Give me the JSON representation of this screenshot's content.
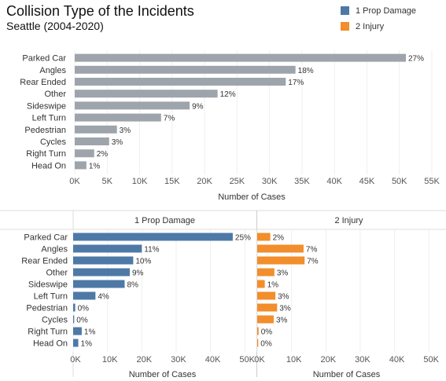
{
  "header": {
    "title": "Collision Type of the Incidents",
    "subtitle": "Seattle (2004-2020)"
  },
  "legend": {
    "items": [
      {
        "label": "1 Prop Damage",
        "color": "#4e79a7"
      },
      {
        "label": "2 Injury",
        "color": "#f28e2b"
      }
    ]
  },
  "chart_data": [
    {
      "type": "bar",
      "orientation": "horizontal",
      "categories": [
        "Parked Car",
        "Angles",
        "Rear Ended",
        "Other",
        "Sideswipe",
        "Left Turn",
        "Pedestrian",
        "Cycles",
        "Right Turn",
        "Head On"
      ],
      "values": [
        51000,
        34000,
        32500,
        22000,
        17700,
        13300,
        6500,
        5300,
        3000,
        1800
      ],
      "data_labels": [
        "27%",
        "18%",
        "17%",
        "12%",
        "9%",
        "7%",
        "3%",
        "3%",
        "2%",
        "1%"
      ],
      "xlabel": "Number of Cases",
      "xlim": [
        0,
        55000
      ],
      "x_ticks": [
        0,
        5000,
        10000,
        15000,
        20000,
        25000,
        30000,
        35000,
        40000,
        45000,
        50000,
        55000
      ],
      "x_tick_labels": [
        "0K",
        "5K",
        "10K",
        "15K",
        "20K",
        "25K",
        "30K",
        "35K",
        "40K",
        "45K",
        "50K",
        "55K"
      ],
      "color": "#9ea4ab",
      "grid": true
    },
    {
      "type": "bar",
      "orientation": "horizontal",
      "layout": "small-multiples",
      "categories": [
        "Parked Car",
        "Angles",
        "Rear Ended",
        "Other",
        "Sideswipe",
        "Left Turn",
        "Pedestrian",
        "Cycles",
        "Right Turn",
        "Head On"
      ],
      "xlabel": "Number of Cases",
      "xlim": [
        0,
        55000
      ],
      "x_ticks": [
        0,
        10000,
        20000,
        30000,
        40000,
        50000
      ],
      "x_tick_labels": [
        "0K",
        "10K",
        "20K",
        "30K",
        "40K",
        "50K"
      ],
      "grid": true,
      "panels": [
        {
          "name": "1 Prop Damage",
          "color": "#4e79a7",
          "values": [
            46500,
            20000,
            17500,
            16500,
            15000,
            6500,
            600,
            300,
            2500,
            1500
          ],
          "data_labels": [
            "25%",
            "11%",
            "10%",
            "9%",
            "8%",
            "4%",
            "0%",
            "0%",
            "1%",
            "1%"
          ]
        },
        {
          "name": "2 Injury",
          "color": "#f28e2b",
          "values": [
            3800,
            13500,
            13800,
            5000,
            2200,
            5300,
            5800,
            4800,
            400,
            300
          ],
          "data_labels": [
            "2%",
            "7%",
            "7%",
            "3%",
            "1%",
            "3%",
            "3%",
            "3%",
            "0%",
            "0%"
          ]
        }
      ]
    }
  ]
}
